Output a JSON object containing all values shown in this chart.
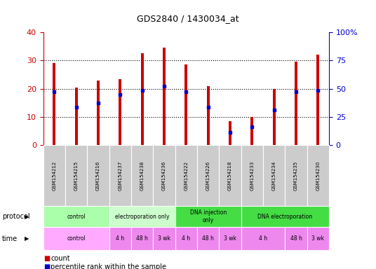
{
  "title": "GDS2840 / 1430034_at",
  "samples": [
    "GSM154212",
    "GSM154215",
    "GSM154216",
    "GSM154237",
    "GSM154238",
    "GSM154236",
    "GSM154222",
    "GSM154226",
    "GSM154218",
    "GSM154233",
    "GSM154234",
    "GSM154235",
    "GSM154230"
  ],
  "counts": [
    29,
    20.5,
    23,
    23.5,
    32.5,
    34.5,
    28.5,
    21,
    8.5,
    10,
    20,
    29.5,
    32
  ],
  "percentile_ranks_left": [
    19,
    13.5,
    15,
    18,
    19.5,
    21,
    19,
    13.5,
    4.5,
    6.5,
    12.5,
    19,
    19.5
  ],
  "left_ylim": [
    0,
    40
  ],
  "right_ylim": [
    0,
    100
  ],
  "left_yticks": [
    0,
    10,
    20,
    30,
    40
  ],
  "right_yticks": [
    0,
    25,
    50,
    75,
    100
  ],
  "right_yticklabels": [
    "0",
    "25",
    "50",
    "75",
    "100%"
  ],
  "bar_color": "#cc0000",
  "dot_color": "#0000cc",
  "bar_width": 0.12,
  "bg_color": "#ffffff",
  "plot_bg": "#ffffff",
  "tick_color_left": "#cc0000",
  "tick_color_right": "#0000cc",
  "protocol_groups": [
    {
      "label": "control",
      "start": 0,
      "end": 3,
      "color": "#aaffaa"
    },
    {
      "label": "electroporation only",
      "start": 3,
      "end": 6,
      "color": "#ccffcc"
    },
    {
      "label": "DNA injection\nonly",
      "start": 6,
      "end": 9,
      "color": "#44dd44"
    },
    {
      "label": "DNA electroporation",
      "start": 9,
      "end": 13,
      "color": "#44dd44"
    }
  ],
  "time_groups": [
    {
      "label": "control",
      "start": 0,
      "end": 3,
      "color": "#ffaaff"
    },
    {
      "label": "4 h",
      "start": 3,
      "end": 4,
      "color": "#ee88ee"
    },
    {
      "label": "48 h",
      "start": 4,
      "end": 5,
      "color": "#ee88ee"
    },
    {
      "label": "3 wk",
      "start": 5,
      "end": 6,
      "color": "#ee88ee"
    },
    {
      "label": "4 h",
      "start": 6,
      "end": 7,
      "color": "#ee88ee"
    },
    {
      "label": "48 h",
      "start": 7,
      "end": 8,
      "color": "#ee88ee"
    },
    {
      "label": "3 wk",
      "start": 8,
      "end": 9,
      "color": "#ee88ee"
    },
    {
      "label": "4 h",
      "start": 9,
      "end": 11,
      "color": "#ee88ee"
    },
    {
      "label": "48 h",
      "start": 11,
      "end": 12,
      "color": "#ee88ee"
    },
    {
      "label": "3 wk",
      "start": 12,
      "end": 13,
      "color": "#ee88ee"
    }
  ]
}
